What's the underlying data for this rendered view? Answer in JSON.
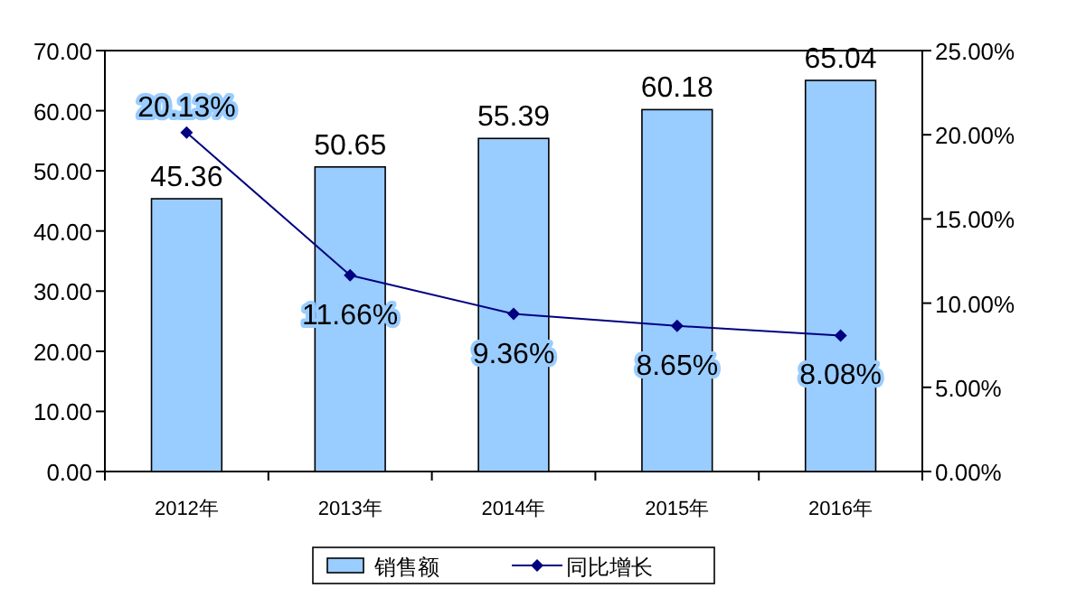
{
  "chart_data": {
    "type": "bar",
    "categories": [
      "2012年",
      "2013年",
      "2014年",
      "2015年",
      "2016年"
    ],
    "series": [
      {
        "name": "销售额",
        "color": "#99ccff",
        "values": [
          45.36,
          50.65,
          55.39,
          60.18,
          65.04
        ],
        "value_labels": [
          "45.36",
          "50.65",
          "55.39",
          "60.18",
          "65.04"
        ]
      },
      {
        "name": "同比增长",
        "type": "line",
        "axis": "y2",
        "color": "#000080",
        "marker": "diamond",
        "values": [
          20.13,
          11.66,
          9.36,
          8.65,
          8.08
        ],
        "value_labels": [
          "20.13%",
          "11.66%",
          "9.36%",
          "8.65%",
          "8.08%"
        ]
      }
    ],
    "ylim": [
      0,
      70
    ],
    "yticks": [
      {
        "value": 0,
        "label": "0.00"
      },
      {
        "value": 10,
        "label": "10.00"
      },
      {
        "value": 20,
        "label": "20.00"
      },
      {
        "value": 30,
        "label": "30.00"
      },
      {
        "value": 40,
        "label": "40.00"
      },
      {
        "value": 50,
        "label": "50.00"
      },
      {
        "value": 60,
        "label": "60.00"
      },
      {
        "value": 70,
        "label": "70.00"
      }
    ],
    "y2lim": [
      0,
      25
    ],
    "y2ticks": [
      {
        "value": 0,
        "label": "0.00%"
      },
      {
        "value": 5,
        "label": "5.00%"
      },
      {
        "value": 10,
        "label": "10.00%"
      },
      {
        "value": 15,
        "label": "15.00%"
      },
      {
        "value": 20,
        "label": "20.00%"
      },
      {
        "value": 25,
        "label": "25.00%"
      }
    ],
    "legend": "bottom"
  }
}
